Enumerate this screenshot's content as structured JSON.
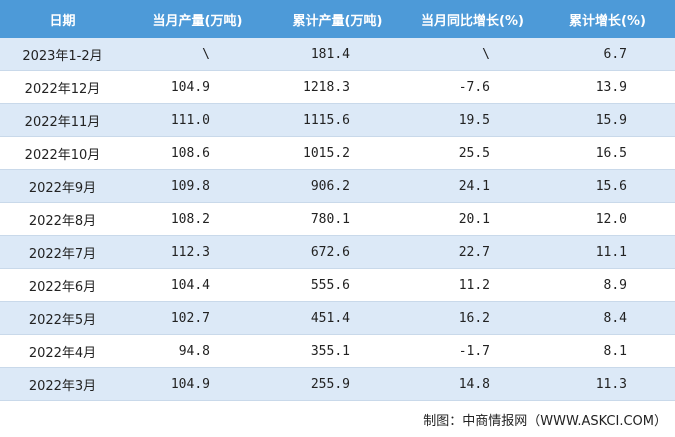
{
  "table": {
    "header": [
      "日期",
      "当月产量(万吨)",
      "累计产量(万吨)",
      "当月同比增长(%)",
      "累计增长(%)"
    ],
    "rows": [
      [
        "2023年1-2月",
        "\\",
        "181.4",
        "\\",
        "6.7"
      ],
      [
        "2022年12月",
        "104.9",
        "1218.3",
        "-7.6",
        "13.9"
      ],
      [
        "2022年11月",
        "111.0",
        "1115.6",
        "19.5",
        "15.9"
      ],
      [
        "2022年10月",
        "108.6",
        "1015.2",
        "25.5",
        "16.5"
      ],
      [
        "2022年9月",
        "109.8",
        "906.2",
        "24.1",
        "15.6"
      ],
      [
        "2022年8月",
        "108.2",
        "780.1",
        "20.1",
        "12.0"
      ],
      [
        "2022年7月",
        "112.3",
        "672.6",
        "22.7",
        "11.1"
      ],
      [
        "2022年6月",
        "104.4",
        "555.6",
        "11.2",
        "8.9"
      ],
      [
        "2022年5月",
        "102.7",
        "451.4",
        "16.2",
        "8.4"
      ],
      [
        "2022年4月",
        "94.8",
        "355.1",
        "-1.7",
        "8.1"
      ],
      [
        "2022年3月",
        "104.9",
        "255.9",
        "14.8",
        "11.3"
      ]
    ]
  },
  "source": "制图：中商情报网（WWW.ASKCI.COM）"
}
